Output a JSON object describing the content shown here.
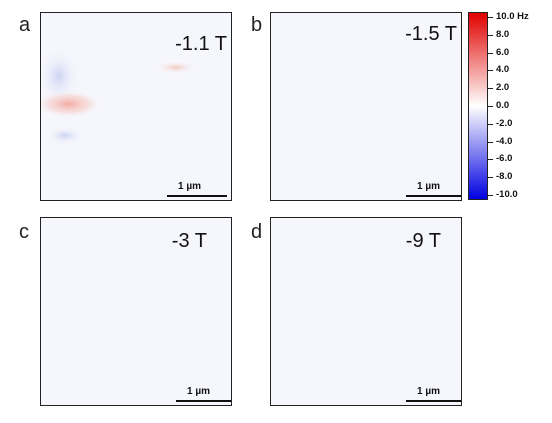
{
  "panels": [
    {
      "letter": "a",
      "field_label": "-1.1 T",
      "scale_label": "1 µm"
    },
    {
      "letter": "b",
      "field_label": "-1.5 T",
      "scale_label": "1 µm"
    },
    {
      "letter": "c",
      "field_label": "-3 T",
      "scale_label": "1 µm"
    },
    {
      "letter": "d",
      "field_label": "-9 T",
      "scale_label": "1 µm"
    }
  ],
  "colorbar": {
    "labels": [
      "10.0 Hz",
      "8.0",
      "6.0",
      "4.0",
      "2.0",
      "0.0",
      "-2.0",
      "-4.0",
      "-6.0",
      "-8.0",
      "-10.0"
    ],
    "max_color": "#e00000",
    "mid_color": "#ffffff",
    "min_color": "#0000e0"
  }
}
